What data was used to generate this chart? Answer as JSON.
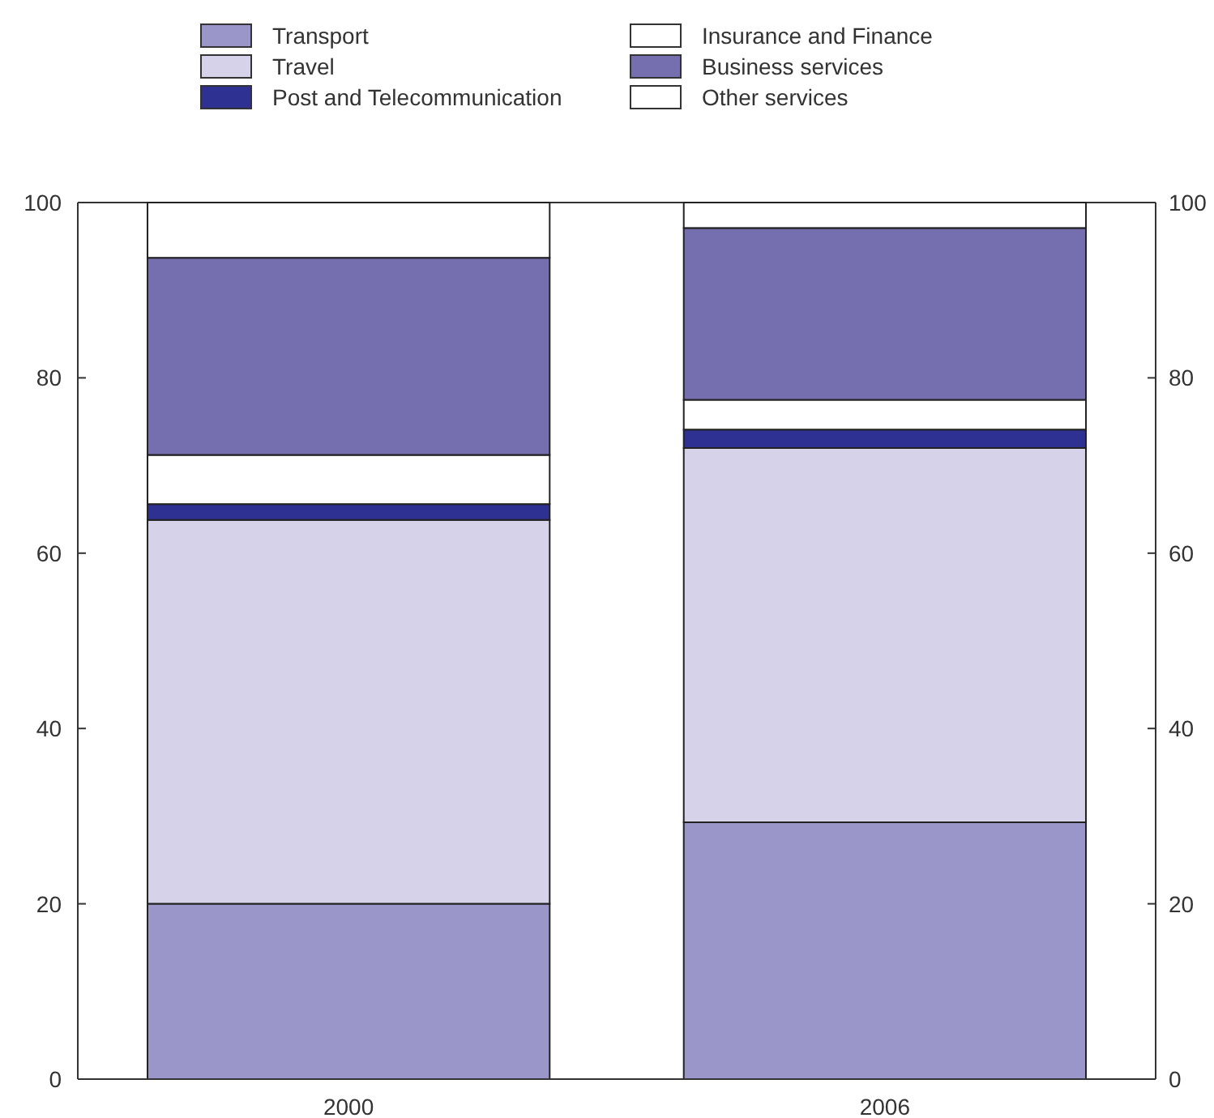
{
  "chart_data": {
    "type": "bar",
    "stacked": true,
    "categories": [
      "2000",
      "2006"
    ],
    "series": [
      {
        "name": "Transport",
        "color": "#9b96c9",
        "values": [
          20,
          29.3
        ]
      },
      {
        "name": "Travel",
        "color": "#d6d2e9",
        "values": [
          43.8,
          42.7
        ]
      },
      {
        "name": "Post and Telecommunication",
        "color": "#2e3192",
        "values": [
          1.8,
          2.1
        ]
      },
      {
        "name": "Insurance and Finance",
        "color": "#ffffff",
        "values": [
          5.6,
          3.4
        ]
      },
      {
        "name": "Business services",
        "color": "#756fb0",
        "values": [
          22.5,
          19.6
        ]
      },
      {
        "name": "Other services",
        "color": "#ffffff",
        "values": [
          6.3,
          2.9
        ]
      }
    ],
    "ylim": [
      0,
      100
    ],
    "yticks": [
      0,
      20,
      40,
      60,
      80,
      100
    ],
    "y2lim": [
      0,
      100
    ],
    "y2ticks": [
      0,
      20,
      40,
      60,
      80,
      100
    ],
    "grid": false,
    "legend": "top"
  }
}
